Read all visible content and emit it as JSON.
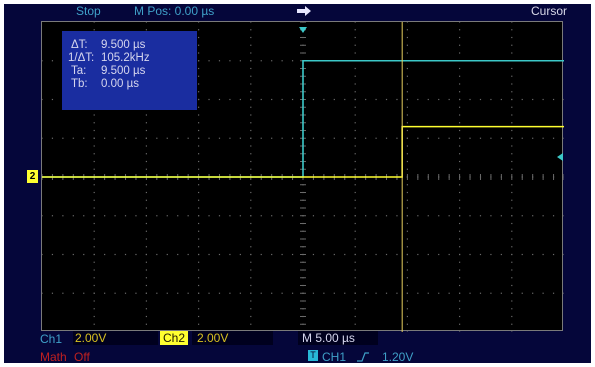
{
  "status": {
    "run_state": "Stop",
    "mpos": "M Pos: 0.00 µs"
  },
  "menu": {
    "title": "Cursor"
  },
  "cursor_readout": {
    "rows": [
      {
        "label": "ΔT:",
        "value": "9.500 µs"
      },
      {
        "label": "1/ΔT:",
        "value": "105.2kHz"
      },
      {
        "label": "Ta:",
        "value": "9.500 µs"
      },
      {
        "label": "Tb:",
        "value": "0.00 µs"
      }
    ]
  },
  "ch2_marker": "2",
  "bottom_bar": {
    "ch1_label": "Ch1",
    "ch1_scale": "2.00V",
    "ch2_label": "Ch2",
    "ch2_scale": "2.00V",
    "timebase": "M 5.00 µs",
    "math_label": "Math",
    "math_state": "Off",
    "trigger_badge": "T",
    "trigger_source": "CH1",
    "trigger_level": "1.20V"
  },
  "waveforms": {
    "ch1": {
      "color": "#3cc8c8",
      "low_v": -2.0,
      "high_v": 4.0,
      "edge_time_us": 0.0
    },
    "ch2": {
      "color": "#ffff30",
      "low_v": 0.0,
      "high_v": 2.6,
      "edge_time_us": 9.5
    },
    "cursor_ta_us": 9.5,
    "cursor_tb_us": 0.0
  },
  "colors": {
    "screen_bg": "#05063a",
    "grid_bg": "#000000",
    "cursor_line": "#e8d060",
    "grid_dots": "#6a6a6a",
    "trigger_marker": "#3cc8c8"
  }
}
